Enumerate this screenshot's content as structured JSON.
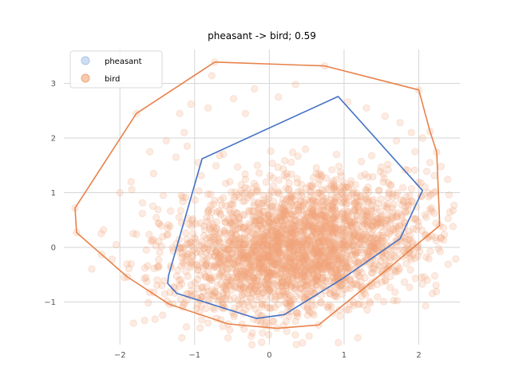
{
  "chart_data": {
    "type": "scatter",
    "title": "pheasant -> bird; 0.59",
    "xlabel": "",
    "ylabel": "",
    "xlim": [
      -2.75,
      2.55
    ],
    "ylim": [
      -1.78,
      3.62
    ],
    "xticks": [
      -2,
      -1,
      0,
      1,
      2
    ],
    "yticks": [
      -1,
      0,
      1,
      2,
      3
    ],
    "xtick_labels": [
      "−2",
      "−1",
      "0",
      "1",
      "2"
    ],
    "ytick_labels": [
      "−1",
      "0",
      "1",
      "2",
      "3"
    ],
    "grid": true,
    "legend_position": "upper-left",
    "series": [
      {
        "name": "pheasant",
        "marker_color": "#aec7e8",
        "hull_color": "#4472c4",
        "hull": [
          [
            -0.9,
            1.62
          ],
          [
            0.92,
            2.76
          ],
          [
            2.05,
            1.04
          ],
          [
            1.75,
            0.16
          ],
          [
            0.98,
            -0.57
          ],
          [
            0.2,
            -1.23
          ],
          [
            -0.17,
            -1.3
          ],
          [
            -1.24,
            -0.84
          ],
          [
            -1.36,
            -0.66
          ],
          [
            -1.35,
            -0.52
          ]
        ],
        "points": []
      },
      {
        "name": "bird",
        "marker_color": "#f2a67a",
        "hull_color": "#e8824a",
        "hull": [
          [
            -0.73,
            3.39
          ],
          [
            0.74,
            3.32
          ],
          [
            2.0,
            2.88
          ],
          [
            2.15,
            2.12
          ],
          [
            2.24,
            1.74
          ],
          [
            2.28,
            0.4
          ],
          [
            1.58,
            -0.4
          ],
          [
            0.66,
            -1.42
          ],
          [
            0.1,
            -1.48
          ],
          [
            -0.55,
            -1.4
          ],
          [
            -1.34,
            -1.04
          ],
          [
            -1.9,
            -0.54
          ],
          [
            -2.58,
            0.27
          ],
          [
            -2.6,
            0.72
          ],
          [
            -1.78,
            2.45
          ]
        ],
        "cluster": {
          "center": [
            0.35,
            0.0
          ],
          "rx": 1.55,
          "ry": 1.05,
          "rotation_deg": 18
        },
        "points": [
          [
            -0.73,
            3.39
          ],
          [
            0.74,
            3.32
          ],
          [
            2.0,
            2.88
          ],
          [
            2.15,
            2.12
          ],
          [
            2.24,
            1.74
          ],
          [
            2.28,
            0.4
          ],
          [
            1.58,
            -0.4
          ],
          [
            0.66,
            -1.42
          ],
          [
            0.1,
            -1.48
          ],
          [
            -0.55,
            -1.4
          ],
          [
            -1.34,
            -1.04
          ],
          [
            -1.9,
            -0.54
          ],
          [
            -2.58,
            0.27
          ],
          [
            -2.6,
            0.72
          ],
          [
            -1.78,
            2.45
          ],
          [
            -0.77,
            3.14
          ],
          [
            -0.2,
            2.9
          ],
          [
            0.35,
            2.98
          ],
          [
            0.12,
            2.75
          ],
          [
            1.05,
            2.66
          ],
          [
            1.3,
            2.55
          ],
          [
            1.55,
            2.4
          ],
          [
            1.75,
            2.28
          ],
          [
            -1.2,
            2.45
          ],
          [
            -1.05,
            2.62
          ],
          [
            -0.82,
            2.55
          ],
          [
            -0.48,
            2.72
          ],
          [
            -0.32,
            2.45
          ],
          [
            -1.14,
            2.1
          ],
          [
            -1.38,
            1.95
          ],
          [
            -1.6,
            1.75
          ],
          [
            -1.85,
            1.2
          ],
          [
            -2.0,
            1.0
          ],
          [
            -1.55,
            1.35
          ],
          [
            -1.42,
            0.95
          ],
          [
            -1.7,
            0.62
          ],
          [
            -2.25,
            0.25
          ],
          [
            -2.05,
            0.05
          ],
          [
            -1.78,
            0.24
          ],
          [
            -1.85,
            -0.3
          ],
          [
            -1.65,
            -0.55
          ],
          [
            -1.4,
            -0.85
          ],
          [
            -1.15,
            -1.05
          ],
          [
            -0.85,
            -1.12
          ],
          [
            -0.35,
            -1.2
          ],
          [
            0.35,
            -1.35
          ],
          [
            0.85,
            -1.2
          ],
          [
            1.25,
            -0.78
          ],
          [
            1.55,
            -0.6
          ],
          [
            1.88,
            -0.1
          ],
          [
            2.1,
            0.55
          ],
          [
            2.2,
            1.0
          ],
          [
            2.15,
            1.55
          ],
          [
            1.95,
            1.75
          ],
          [
            1.82,
            1.42
          ],
          [
            -1.25,
            1.65
          ],
          [
            -1.1,
            1.85
          ],
          [
            -0.95,
            1.55
          ],
          [
            -1.02,
            0.25
          ],
          [
            -2.22,
            0.32
          ],
          [
            1.7,
            1.95
          ],
          [
            1.9,
            2.1
          ],
          [
            2.05,
            2.0
          ]
        ]
      }
    ]
  }
}
